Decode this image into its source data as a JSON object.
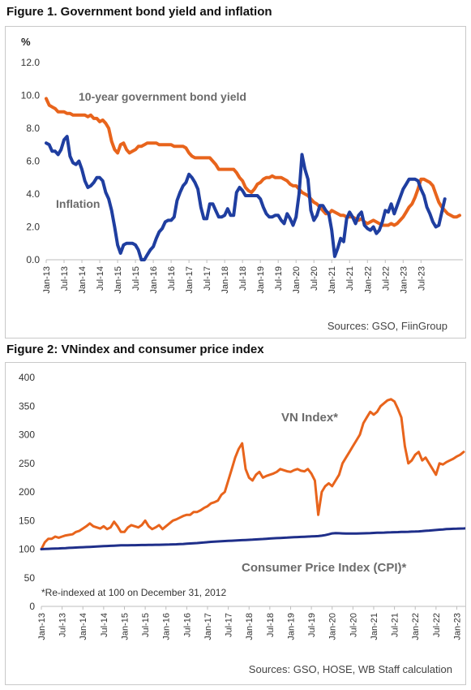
{
  "figure1": {
    "title": "Figure 1. Government bond yield and inflation",
    "source": "Sources: GSO, FiinGroup",
    "chart_data": {
      "type": "line",
      "ylabel": "%",
      "ylim": [
        0,
        12
      ],
      "y_ticks": [
        "0.0",
        "2.0",
        "4.0",
        "6.0",
        "8.0",
        "10.0",
        "12.0"
      ],
      "x_ticks": [
        "Jan-13",
        "Jul-13",
        "Jan-14",
        "Jul-14",
        "Jan-15",
        "Jul-15",
        "Jan-16",
        "Jul-16",
        "Jan-17",
        "Jul-17",
        "Jan-18",
        "Jul-18",
        "Jan-19",
        "Jul-19",
        "Jan-20",
        "Jul-20",
        "Jan-21",
        "Jul-21",
        "Jan-22",
        "Jul-22",
        "Jan-23",
        "Jul-23"
      ],
      "x_start": "Jan-13",
      "x_step": "1 month",
      "grid": false,
      "series": [
        {
          "name": "10-year government bond yield",
          "color": "#e8641c",
          "values": [
            9.8,
            9.4,
            9.3,
            9.2,
            9.0,
            9.0,
            9.0,
            8.9,
            8.9,
            8.8,
            8.8,
            8.8,
            8.8,
            8.8,
            8.7,
            8.8,
            8.6,
            8.6,
            8.4,
            8.5,
            8.3,
            8.0,
            7.2,
            6.7,
            6.5,
            7.0,
            7.1,
            6.7,
            6.5,
            6.6,
            6.7,
            6.9,
            6.9,
            7.0,
            7.1,
            7.1,
            7.1,
            7.1,
            7.0,
            7.0,
            7.0,
            7.0,
            7.0,
            6.9,
            6.9,
            6.9,
            6.9,
            6.8,
            6.5,
            6.3,
            6.2,
            6.2,
            6.2,
            6.2,
            6.2,
            6.2,
            6.0,
            5.8,
            5.5,
            5.5,
            5.5,
            5.5,
            5.5,
            5.5,
            5.3,
            5.0,
            4.8,
            4.4,
            4.2,
            4.1,
            4.3,
            4.6,
            4.7,
            4.9,
            5.0,
            5.0,
            5.1,
            5.0,
            5.0,
            5.0,
            4.9,
            4.8,
            4.6,
            4.5,
            4.5,
            4.3,
            4.1,
            4.0,
            3.9,
            3.7,
            3.5,
            3.4,
            3.2,
            3.0,
            2.8,
            2.8,
            3.0,
            2.9,
            2.8,
            2.7,
            2.7,
            2.6,
            2.6,
            2.6,
            2.5,
            2.4,
            2.5,
            2.3,
            2.2,
            2.3,
            2.4,
            2.3,
            2.2,
            2.1,
            2.1,
            2.1,
            2.2,
            2.1,
            2.2,
            2.4,
            2.6,
            2.9,
            3.2,
            3.4,
            3.8,
            4.3,
            4.9,
            4.9,
            4.8,
            4.7,
            4.5,
            4.0,
            3.5,
            3.2,
            3.0,
            2.8,
            2.7,
            2.6,
            2.6,
            2.7
          ]
        },
        {
          "name": "Inflation",
          "color": "#1f3ea0",
          "values": [
            7.1,
            7.0,
            6.6,
            6.6,
            6.4,
            6.7,
            7.3,
            7.5,
            6.3,
            5.9,
            5.8,
            6.0,
            5.5,
            4.8,
            4.4,
            4.5,
            4.7,
            5.0,
            5.0,
            4.8,
            4.1,
            3.7,
            3.0,
            2.0,
            0.9,
            0.4,
            0.9,
            1.0,
            1.0,
            1.0,
            0.9,
            0.6,
            0.0,
            0.0,
            0.3,
            0.6,
            0.8,
            1.3,
            1.7,
            1.9,
            2.3,
            2.4,
            2.4,
            2.6,
            3.6,
            4.1,
            4.5,
            4.7,
            5.2,
            5.0,
            4.7,
            4.3,
            3.2,
            2.5,
            2.5,
            3.4,
            3.4,
            3.0,
            2.6,
            2.6,
            2.7,
            3.1,
            2.7,
            2.7,
            4.1,
            4.4,
            4.2,
            3.9,
            3.9,
            3.9,
            3.9,
            3.9,
            3.7,
            3.2,
            2.8,
            2.6,
            2.6,
            2.7,
            2.7,
            2.4,
            2.2,
            2.8,
            2.5,
            2.1,
            2.6,
            4.0,
            6.4,
            5.5,
            4.9,
            3.0,
            2.4,
            2.7,
            3.3,
            3.3,
            3.0,
            2.8,
            1.8,
            0.2,
            0.7,
            1.3,
            1.1,
            2.5,
            2.9,
            2.6,
            2.2,
            2.7,
            2.9,
            2.1,
            1.9,
            1.8,
            2.0,
            1.6,
            1.8,
            2.3,
            3.0,
            2.9,
            3.4,
            2.8,
            3.3,
            3.8,
            4.3,
            4.6,
            4.9,
            4.9,
            4.9,
            4.8,
            4.3,
            3.9,
            3.2,
            2.8,
            2.3,
            2.0,
            2.1,
            2.9,
            3.7
          ]
        }
      ]
    }
  },
  "figure2": {
    "title": "Figure 2: VNindex and consumer price index",
    "source": "Sources: GSO, HOSE, WB Staff calculation",
    "note": "*Re-indexed at 100 on December 31, 2012",
    "chart_data": {
      "type": "line",
      "ylim": [
        0,
        400
      ],
      "y_ticks": [
        "0",
        "50",
        "100",
        "150",
        "200",
        "250",
        "300",
        "350",
        "400"
      ],
      "x_ticks": [
        "Jan-13",
        "Jul-13",
        "Jan-14",
        "Jul-14",
        "Jan-15",
        "Jul-15",
        "Jan-16",
        "Jul-16",
        "Jan-17",
        "Jul-17",
        "Jan-18",
        "Jul-18",
        "Jan-19",
        "Jul-19",
        "Jan-20",
        "Jul-20",
        "Jan-21",
        "Jul-21",
        "Jan-22",
        "Jul-22",
        "Jan-23"
      ],
      "x_start": "Jan-13",
      "x_step": "1 month",
      "grid": false,
      "series": [
        {
          "name": "VN Index*",
          "color": "#e8641c",
          "values": [
            100,
            112,
            118,
            118,
            122,
            120,
            122,
            124,
            125,
            126,
            130,
            132,
            136,
            140,
            145,
            140,
            138,
            136,
            140,
            135,
            138,
            148,
            140,
            130,
            130,
            138,
            142,
            140,
            138,
            142,
            150,
            140,
            135,
            138,
            142,
            135,
            140,
            145,
            150,
            152,
            155,
            158,
            160,
            160,
            165,
            165,
            168,
            172,
            175,
            180,
            182,
            185,
            195,
            200,
            220,
            240,
            260,
            275,
            285,
            240,
            225,
            220,
            230,
            235,
            225,
            228,
            230,
            232,
            235,
            240,
            238,
            236,
            235,
            238,
            240,
            237,
            236,
            240,
            232,
            220,
            160,
            200,
            210,
            215,
            210,
            220,
            230,
            250,
            260,
            270,
            280,
            290,
            300,
            320,
            330,
            340,
            335,
            340,
            350,
            355,
            360,
            362,
            358,
            345,
            330,
            280,
            250,
            255,
            265,
            270,
            255,
            260,
            250,
            240,
            230,
            250,
            248,
            252,
            255,
            258,
            262,
            265,
            270
          ]
        },
        {
          "name": "Consumer Price Index (CPI)*",
          "color": "#1f2f8a",
          "values": [
            100.0,
            100.3,
            100.6,
            100.8,
            101.1,
            101.3,
            101.6,
            101.9,
            102.2,
            102.5,
            102.8,
            103.1,
            103.4,
            103.7,
            104.0,
            104.3,
            104.6,
            104.9,
            105.2,
            105.5,
            105.8,
            106.1,
            106.4,
            106.6,
            106.7,
            106.8,
            106.9,
            107.0,
            107.1,
            107.2,
            107.3,
            107.4,
            107.5,
            107.6,
            107.7,
            107.8,
            107.9,
            108.1,
            108.3,
            108.5,
            108.8,
            109.1,
            109.5,
            109.9,
            110.3,
            110.7,
            111.2,
            111.7,
            112.2,
            112.7,
            113.1,
            113.5,
            113.9,
            114.2,
            114.5,
            114.8,
            115.1,
            115.4,
            115.7,
            116.0,
            116.3,
            116.6,
            117.0,
            117.4,
            117.8,
            118.2,
            118.6,
            119.0,
            119.3,
            119.6,
            119.9,
            120.2,
            120.5,
            120.8,
            121.1,
            121.4,
            121.7,
            122.0,
            122.3,
            122.6,
            122.9,
            123.5,
            124.5,
            126.0,
            127.5,
            128.0,
            127.8,
            127.5,
            127.3,
            127.2,
            127.3,
            127.4,
            127.5,
            127.6,
            127.8,
            128.0,
            128.3,
            128.6,
            128.8,
            129.0,
            129.2,
            129.4,
            129.6,
            129.8,
            130.0,
            130.2,
            130.4,
            130.6,
            130.8,
            131.1,
            131.5,
            132.0,
            132.5,
            133.0,
            133.5,
            134.0,
            134.5,
            135.0,
            135.3,
            135.6,
            135.8,
            136.0,
            136.2,
            136.4,
            136.5
          ]
        }
      ]
    }
  }
}
